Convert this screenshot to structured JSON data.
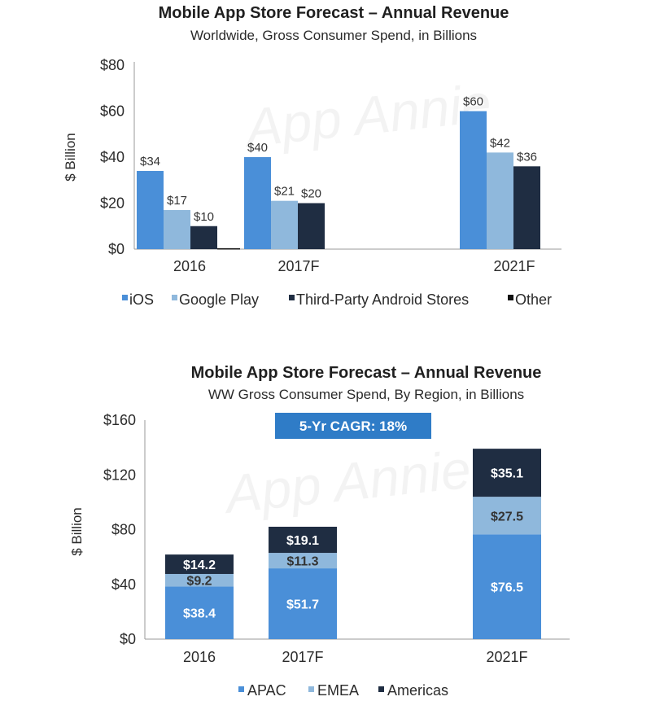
{
  "colors": {
    "ios": "#4a8fd8",
    "google_play": "#8fb8dc",
    "third_party": "#1f2d42",
    "other": "#111111",
    "apac": "#4a8fd8",
    "emea": "#8fb8dc",
    "americas": "#1f2d42",
    "axis": "#999999",
    "badge": "#2f7cc7"
  },
  "watermark": "App Annie",
  "chart_data": [
    {
      "type": "bar",
      "title": "Mobile App Store Forecast – Annual Revenue",
      "subtitle": "Worldwide, Gross Consumer Spend, in Billions",
      "ylabel": "$ Billion",
      "xlabel": "",
      "ylim": [
        0,
        80
      ],
      "yticks": [
        "$0",
        "$20",
        "$40",
        "$60",
        "$80"
      ],
      "ytick_values": [
        0,
        20,
        40,
        60,
        80
      ],
      "categories": [
        "2016",
        "2017F",
        "2021F"
      ],
      "series": [
        {
          "name": "iOS",
          "values": [
            34,
            40,
            60
          ],
          "labels": [
            "$34",
            "$40",
            "$60"
          ]
        },
        {
          "name": "Google Play",
          "values": [
            17,
            21,
            42
          ],
          "labels": [
            "$17",
            "$21",
            "$42"
          ]
        },
        {
          "name": "Third-Party Android Stores",
          "values": [
            10,
            20,
            36
          ],
          "labels": [
            "$10",
            "$20",
            "$36"
          ]
        },
        {
          "name": "Other",
          "values": [
            0.4,
            0,
            0
          ],
          "labels": [
            "",
            "",
            ""
          ]
        }
      ],
      "legend_position": "bottom",
      "grid": false
    },
    {
      "type": "bar",
      "stacked": true,
      "title": "Mobile App Store Forecast – Annual Revenue",
      "subtitle": "WW Gross Consumer Spend, By Region, in Billions",
      "ylabel": "$ Billion",
      "xlabel": "",
      "ylim": [
        0,
        160
      ],
      "yticks": [
        "$0",
        "$40",
        "$80",
        "$120",
        "$160"
      ],
      "ytick_values": [
        0,
        40,
        80,
        120,
        160
      ],
      "categories": [
        "2016",
        "2017F",
        "2021F"
      ],
      "series": [
        {
          "name": "APAC",
          "values": [
            38.4,
            51.7,
            76.5
          ],
          "labels": [
            "$38.4",
            "$51.7",
            "$76.5"
          ]
        },
        {
          "name": "EMEA",
          "values": [
            9.2,
            11.3,
            27.5
          ],
          "labels": [
            "$9.2",
            "$11.3",
            "$27.5"
          ]
        },
        {
          "name": "Americas",
          "values": [
            14.2,
            19.1,
            35.1
          ],
          "labels": [
            "$14.2",
            "$19.1",
            "$35.1"
          ]
        }
      ],
      "annotation": "5-Yr CAGR: 18%",
      "legend_position": "bottom",
      "grid": false
    }
  ]
}
